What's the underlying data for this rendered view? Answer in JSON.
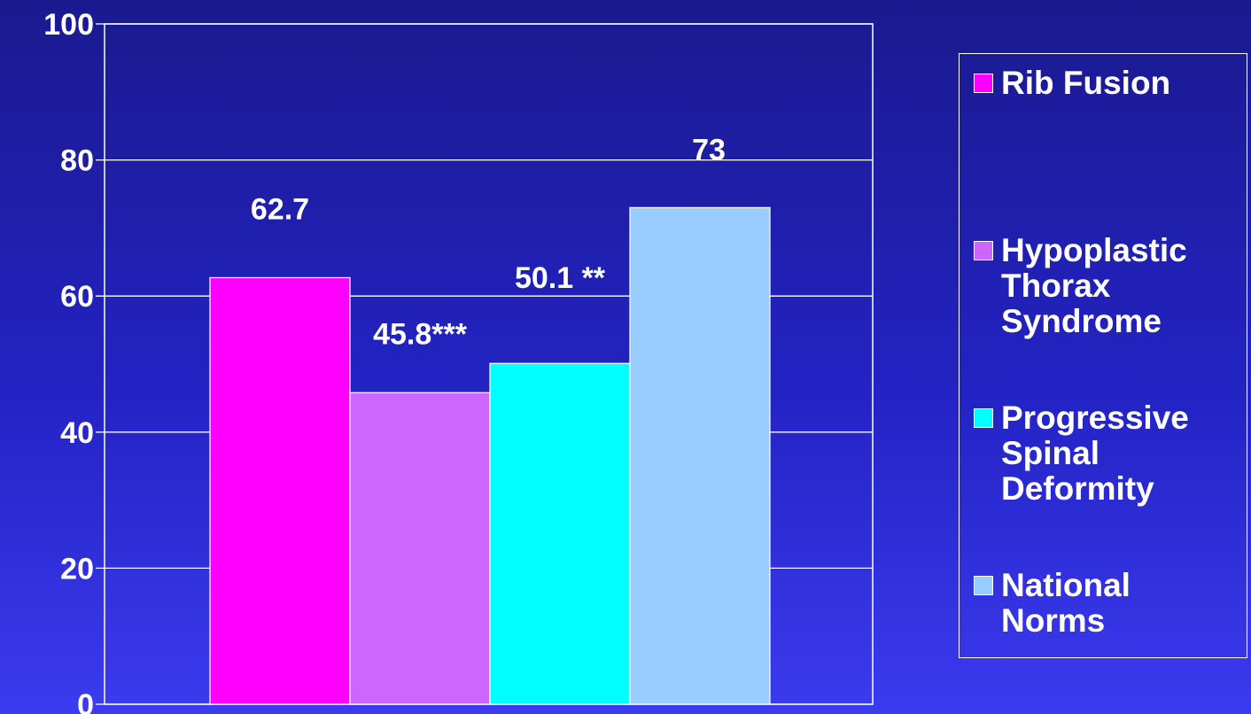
{
  "chart_data": {
    "type": "bar",
    "title": "",
    "xlabel": "",
    "ylabel": "",
    "ylim": [
      0,
      100
    ],
    "yticks": [
      "0",
      "20",
      "40",
      "60",
      "80",
      "100"
    ],
    "grid": true,
    "legend_position": "right",
    "categories": [
      ""
    ],
    "series": [
      {
        "name": "Rib Fusion",
        "values": [
          62.7
        ],
        "label": "62.7",
        "color": "#ff00ff"
      },
      {
        "name": "Hypoplastic Thorax Syndrome",
        "values": [
          45.8
        ],
        "label": "45.8***",
        "color": "#cc66ff"
      },
      {
        "name": "Progressive Spinal Deformity",
        "values": [
          50.1
        ],
        "label": "50.1 **",
        "color": "#00ffff"
      },
      {
        "name": "National Norms",
        "values": [
          73
        ],
        "label": "73",
        "color": "#99ccff"
      }
    ]
  }
}
